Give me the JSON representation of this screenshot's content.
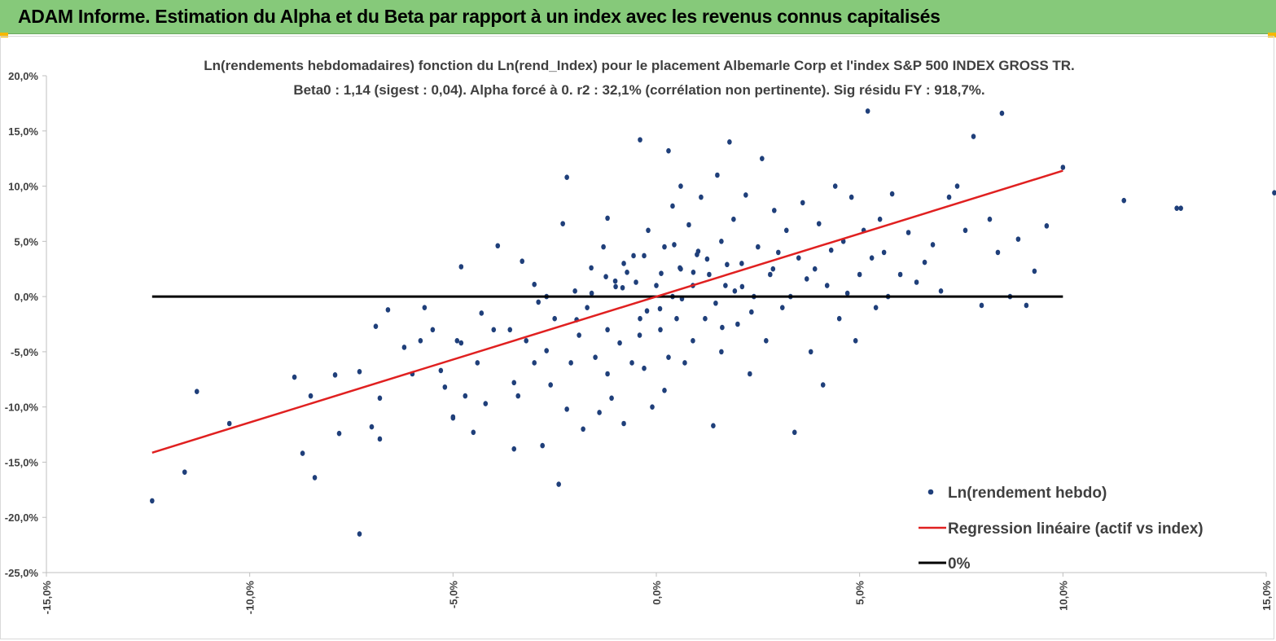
{
  "header": {
    "title": "ADAM Informe. Estimation du Alpha et du Beta par rapport à un index avec les revenus connus capitalisés"
  },
  "colors": {
    "banner": "#86c97a",
    "points": "#1f3f7a",
    "regression": "#e02020",
    "zero_line": "#000000",
    "corner_accent": "#f5b800"
  },
  "chart_data": {
    "type": "scatter",
    "title_line1": "Ln(rendements hebdomadaires) fonction du Ln(rend_Index) pour le placement Albemarle Corp et l'index S&P 500 INDEX GROSS TR.",
    "title_line2": "Beta0 : 1,14 (sigest : 0,04). Alpha forcé à 0. r2 : 32,1% (corrélation non pertinente). Sig résidu FY : 918,7%.",
    "xlim": [
      -0.15,
      0.15
    ],
    "ylim": [
      -0.25,
      0.2
    ],
    "x_ticks": [
      "-15,0%",
      "-10,0%",
      "-5,0%",
      "0,0%",
      "5,0%",
      "10,0%",
      "15,0%"
    ],
    "y_ticks": [
      "20,0%",
      "15,0%",
      "10,0%",
      "5,0%",
      "0,0%",
      "-5,0%",
      "-10,0%",
      "-15,0%",
      "-20,0%",
      "-25,0%"
    ],
    "grid": false,
    "legend_position": "bottom-right",
    "series": [
      {
        "name": "Ln(rendement hebdo)",
        "kind": "scatter",
        "points": [
          [
            -0.124,
            -0.185
          ],
          [
            -0.116,
            -0.159
          ],
          [
            -0.113,
            -0.086
          ],
          [
            -0.105,
            -0.115
          ],
          [
            -0.089,
            -0.073
          ],
          [
            -0.087,
            -0.142
          ],
          [
            -0.085,
            -0.09
          ],
          [
            -0.084,
            -0.164
          ],
          [
            -0.078,
            -0.124
          ],
          [
            -0.079,
            -0.071
          ],
          [
            -0.073,
            -0.215
          ],
          [
            -0.073,
            -0.068
          ],
          [
            -0.07,
            -0.118
          ],
          [
            -0.069,
            -0.027
          ],
          [
            -0.068,
            -0.092
          ],
          [
            -0.068,
            -0.129
          ],
          [
            -0.066,
            -0.012
          ],
          [
            -0.062,
            -0.046
          ],
          [
            -0.06,
            -0.07
          ],
          [
            -0.058,
            -0.04
          ],
          [
            -0.057,
            -0.01
          ],
          [
            -0.055,
            -0.03
          ],
          [
            -0.053,
            -0.067
          ],
          [
            -0.052,
            -0.082
          ],
          [
            -0.05,
            -0.11
          ],
          [
            -0.05,
            -0.109
          ],
          [
            -0.049,
            -0.04
          ],
          [
            -0.048,
            0.027
          ],
          [
            -0.048,
            -0.042
          ],
          [
            -0.047,
            -0.09
          ],
          [
            -0.045,
            -0.123
          ],
          [
            -0.044,
            -0.06
          ],
          [
            -0.043,
            -0.015
          ],
          [
            -0.042,
            -0.097
          ],
          [
            -0.04,
            -0.03
          ],
          [
            -0.039,
            0.046
          ],
          [
            -0.036,
            -0.03
          ],
          [
            -0.035,
            -0.138
          ],
          [
            -0.035,
            -0.078
          ],
          [
            -0.034,
            -0.09
          ],
          [
            -0.033,
            0.032
          ],
          [
            -0.032,
            -0.04
          ],
          [
            -0.03,
            0.011
          ],
          [
            -0.03,
            -0.06
          ],
          [
            -0.029,
            -0.005
          ],
          [
            -0.028,
            -0.135
          ],
          [
            -0.027,
            -0.049
          ],
          [
            -0.026,
            -0.08
          ],
          [
            -0.025,
            -0.02
          ],
          [
            -0.024,
            -0.17
          ],
          [
            -0.023,
            0.066
          ],
          [
            -0.022,
            0.108
          ],
          [
            -0.022,
            -0.102
          ],
          [
            -0.021,
            -0.06
          ],
          [
            -0.02,
            0.005
          ],
          [
            -0.019,
            -0.035
          ],
          [
            -0.018,
            -0.12
          ],
          [
            -0.017,
            -0.01
          ],
          [
            -0.016,
            0.026
          ],
          [
            -0.015,
            -0.055
          ],
          [
            -0.014,
            -0.105
          ],
          [
            -0.013,
            0.045
          ],
          [
            -0.012,
            -0.03
          ],
          [
            -0.012,
            -0.07
          ],
          [
            -0.011,
            -0.092
          ],
          [
            -0.012,
            0.071
          ],
          [
            -0.01,
            0.009
          ],
          [
            -0.009,
            -0.042
          ],
          [
            -0.008,
            -0.115
          ],
          [
            -0.008,
            0.03
          ],
          [
            -0.006,
            -0.06
          ],
          [
            -0.005,
            0.013
          ],
          [
            -0.004,
            0.142
          ],
          [
            -0.004,
            -0.02
          ],
          [
            -0.003,
            -0.065
          ],
          [
            -0.003,
            0.037
          ],
          [
            -0.002,
            0.06
          ],
          [
            -0.001,
            -0.1
          ],
          [
            0.0,
            0.01
          ],
          [
            0.001,
            -0.03
          ],
          [
            0.002,
            0.045
          ],
          [
            0.002,
            -0.085
          ],
          [
            0.003,
            0.132
          ],
          [
            0.003,
            -0.055
          ],
          [
            0.004,
            0.082
          ],
          [
            0.004,
            0.0
          ],
          [
            0.005,
            -0.02
          ],
          [
            0.006,
            0.1
          ],
          [
            0.006,
            0.025
          ],
          [
            0.007,
            -0.06
          ],
          [
            0.008,
            0.065
          ],
          [
            0.009,
            -0.04
          ],
          [
            0.009,
            0.01
          ],
          [
            0.01,
            0.038
          ],
          [
            0.011,
            0.09
          ],
          [
            0.012,
            -0.02
          ],
          [
            0.013,
            0.02
          ],
          [
            0.014,
            -0.117
          ],
          [
            0.015,
            0.11
          ],
          [
            0.016,
            0.05
          ],
          [
            0.016,
            -0.05
          ],
          [
            0.017,
            0.01
          ],
          [
            0.018,
            0.14
          ],
          [
            0.019,
            0.07
          ],
          [
            0.02,
            -0.025
          ],
          [
            0.021,
            0.03
          ],
          [
            0.022,
            0.092
          ],
          [
            0.023,
            -0.07
          ],
          [
            0.024,
            0.0
          ],
          [
            0.025,
            0.045
          ],
          [
            0.026,
            0.125
          ],
          [
            0.027,
            -0.04
          ],
          [
            0.028,
            0.02
          ],
          [
            0.029,
            0.078
          ],
          [
            0.03,
            0.04
          ],
          [
            0.031,
            -0.01
          ],
          [
            0.032,
            0.06
          ],
          [
            0.033,
            0.0
          ],
          [
            0.034,
            -0.123
          ],
          [
            0.035,
            0.035
          ],
          [
            0.036,
            0.085
          ],
          [
            0.037,
            0.016
          ],
          [
            0.038,
            -0.05
          ],
          [
            0.039,
            0.025
          ],
          [
            0.04,
            0.066
          ],
          [
            0.041,
            -0.08
          ],
          [
            0.042,
            0.01
          ],
          [
            0.043,
            0.042
          ],
          [
            0.044,
            0.1
          ],
          [
            0.045,
            -0.02
          ],
          [
            0.046,
            0.05
          ],
          [
            0.047,
            0.003
          ],
          [
            0.048,
            0.09
          ],
          [
            0.049,
            -0.04
          ],
          [
            0.05,
            0.02
          ],
          [
            0.051,
            0.06
          ],
          [
            0.052,
            0.168
          ],
          [
            0.053,
            0.035
          ],
          [
            0.054,
            -0.01
          ],
          [
            0.055,
            0.07
          ],
          [
            0.056,
            0.04
          ],
          [
            0.057,
            0.0
          ],
          [
            0.058,
            0.093
          ],
          [
            0.06,
            0.02
          ],
          [
            0.062,
            0.058
          ],
          [
            0.064,
            0.013
          ],
          [
            0.066,
            0.031
          ],
          [
            0.068,
            0.047
          ],
          [
            0.07,
            0.005
          ],
          [
            0.072,
            0.09
          ],
          [
            0.074,
            0.1
          ],
          [
            0.076,
            0.06
          ],
          [
            0.078,
            0.145
          ],
          [
            0.08,
            -0.008
          ],
          [
            0.082,
            0.07
          ],
          [
            0.084,
            0.04
          ],
          [
            0.085,
            0.166
          ],
          [
            0.087,
            0.0
          ],
          [
            0.089,
            0.052
          ],
          [
            0.091,
            -0.008
          ],
          [
            0.093,
            0.023
          ],
          [
            0.096,
            0.064
          ],
          [
            0.1,
            0.117
          ],
          [
            0.115,
            0.087
          ],
          [
            0.128,
            0.08
          ],
          [
            0.129,
            0.08
          ],
          [
            0.152,
            0.094
          ],
          [
            -0.027,
            0.0
          ],
          [
            -0.0056,
            0.037
          ],
          [
            -0.0023,
            -0.013
          ],
          [
            0.0012,
            0.021
          ],
          [
            -0.0101,
            0.014
          ],
          [
            0.0091,
            0.022
          ],
          [
            0.0162,
            -0.028
          ],
          [
            -0.0159,
            0.003
          ],
          [
            0.0044,
            0.047
          ],
          [
            0.0211,
            0.009
          ],
          [
            -0.0196,
            -0.021
          ],
          [
            0.0063,
            -0.002
          ],
          [
            0.0125,
            0.034
          ],
          [
            -0.0083,
            0.008
          ],
          [
            0.0174,
            0.029
          ],
          [
            0.0009,
            -0.011
          ],
          [
            -0.0124,
            0.018
          ],
          [
            0.0287,
            0.025
          ],
          [
            0.0234,
            -0.014
          ],
          [
            -0.0041,
            -0.035
          ],
          [
            0.0103,
            0.041
          ],
          [
            0.0193,
            0.005
          ],
          [
            -0.0072,
            0.022
          ],
          [
            0.0146,
            -0.006
          ],
          [
            0.0058,
            0.026
          ]
        ]
      },
      {
        "name": "Regression linéaire (actif vs index)",
        "kind": "line",
        "points": [
          [
            -0.124,
            -0.1414
          ],
          [
            0.1,
            0.114
          ]
        ]
      },
      {
        "name": "0%",
        "kind": "line",
        "points": [
          [
            -0.124,
            0.0
          ],
          [
            0.1,
            0.0
          ]
        ]
      }
    ]
  }
}
